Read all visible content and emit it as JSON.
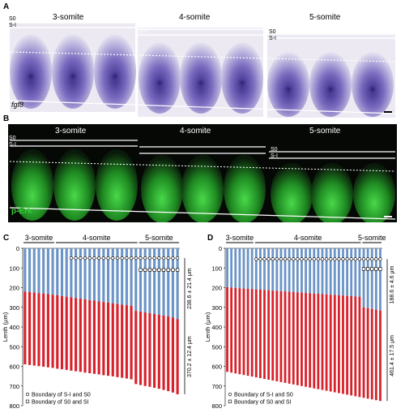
{
  "panel_a": {
    "letter": "A",
    "stages": [
      "3-somite",
      "4-somite",
      "5-somite"
    ],
    "labels": {
      "s0": "S0",
      "s1": "S-I"
    },
    "gene": "fgf8"
  },
  "panel_b": {
    "letter": "B",
    "stages": [
      "3-somite",
      "4-somite",
      "5-somite"
    ],
    "labels": {
      "s0": "S0",
      "s1": "S-I"
    },
    "marker": "p-Erk"
  },
  "colors": {
    "blue": "#6b94c6",
    "red": "#d8222b",
    "green": "#3cc83c",
    "purple": "#5a4aa8"
  },
  "chart_data": [
    {
      "type": "bar",
      "panel": "C",
      "stages": [
        "3-somite",
        "4-somite",
        "5-somite"
      ],
      "stage_counts": [
        7,
        18,
        9
      ],
      "ylabel": "Lenth (μm)",
      "ylim": [
        0,
        800
      ],
      "y_ticks": [
        0,
        100,
        200,
        300,
        400,
        500,
        600,
        700,
        800
      ],
      "y_inverted": true,
      "series_top": [
        220,
        222,
        225,
        228,
        230,
        233,
        236,
        239,
        243,
        246,
        249,
        253,
        256,
        260,
        263,
        266,
        270,
        273,
        276,
        280,
        283,
        286,
        289,
        292,
        318,
        322,
        326,
        330,
        334,
        338,
        342,
        346,
        352,
        360
      ],
      "series_bottom": [
        590,
        593,
        596,
        599,
        602,
        605,
        608,
        612,
        615,
        618,
        622,
        625,
        628,
        632,
        635,
        638,
        641,
        645,
        648,
        651,
        655,
        658,
        662,
        666,
        690,
        695,
        700,
        704,
        709,
        714,
        720,
        726,
        733,
        742
      ],
      "markers_s1_s0": {
        "start_index": 10,
        "end_index": 33,
        "value": 50
      },
      "markers_s0_si": {
        "start_index": 25,
        "end_index": 33,
        "value": 110
      },
      "annotation_upper": "238.6 ± 21.4 μm",
      "annotation_lower": "370.2 ± 12.4 μm",
      "legend": [
        "Boundary of S-I and S0",
        "Boundary of S0 and SI"
      ]
    },
    {
      "type": "bar",
      "panel": "D",
      "stages": [
        "3-somite",
        "4-somite",
        "5-somite"
      ],
      "stage_counts": [
        7,
        26,
        5
      ],
      "ylabel": "Lenth (μm)",
      "ylim": [
        0,
        800
      ],
      "y_ticks": [
        0,
        100,
        200,
        300,
        400,
        500,
        600,
        700,
        800
      ],
      "y_inverted": true,
      "series_top": [
        198,
        200,
        201,
        203,
        204,
        206,
        207,
        209,
        210,
        212,
        213,
        215,
        216,
        218,
        219,
        221,
        222,
        224,
        225,
        227,
        228,
        230,
        231,
        233,
        234,
        236,
        237,
        239,
        240,
        242,
        243,
        245,
        246,
        300,
        304,
        308,
        312,
        316
      ],
      "series_bottom": [
        628,
        632,
        636,
        640,
        644,
        648,
        652,
        656,
        660,
        664,
        668,
        672,
        676,
        680,
        684,
        688,
        692,
        696,
        700,
        704,
        708,
        712,
        716,
        720,
        724,
        728,
        732,
        736,
        740,
        744,
        748,
        752,
        756,
        760,
        764,
        768,
        772,
        776
      ],
      "markers_s1_s0": {
        "start_index": 7,
        "end_index": 37,
        "value": 55
      },
      "markers_s0_si": {
        "start_index": 33,
        "end_index": 37,
        "value": 105
      },
      "annotation_upper": "188.6 ± 4.6 μm",
      "annotation_lower": "461.4 ± 17.5 μm",
      "legend": [
        "Boundary of S-I and S0",
        "Boundary of S0 and SI"
      ]
    }
  ]
}
